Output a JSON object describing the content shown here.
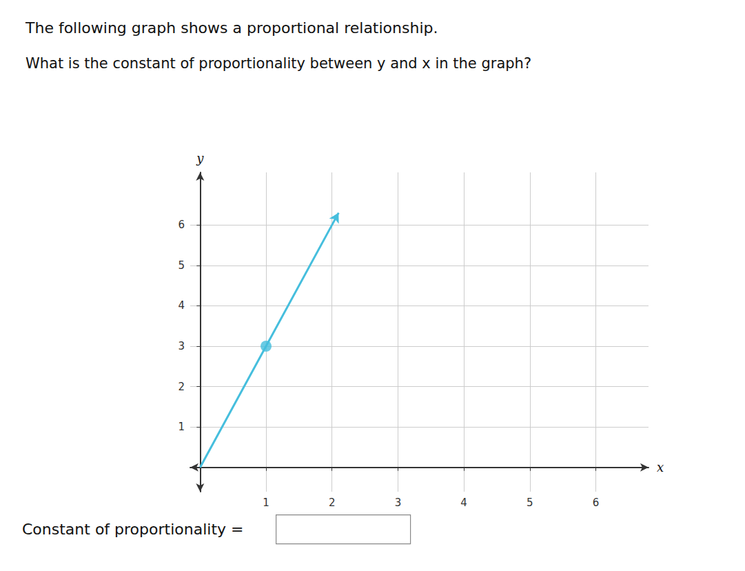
{
  "chart_data": {
    "type": "line",
    "title": "The following graph shows a proportional relationship.",
    "subtitle": "What is the constant of proportionality between y and x in the graph?",
    "annotations": [
      "Constant of proportionality ="
    ],
    "xlabel": "x",
    "ylabel": "y",
    "series": [
      {
        "type": "line",
        "color": "#45BEDD",
        "x": [
          0.0,
          2.1
        ],
        "values": [
          0.0,
          6.3
        ]
      },
      {
        "type": "scatter",
        "color": "#45BEDD",
        "x": [
          1
        ],
        "values": [
          3
        ]
      }
    ],
    "xlim": [
      -0.15,
      6.8
    ],
    "ylim": [
      -0.6,
      7.3
    ],
    "xticks": [
      1,
      2,
      3,
      4,
      5,
      6
    ],
    "yticks": [
      1,
      2,
      3,
      4,
      5,
      6
    ],
    "grid": true
  }
}
